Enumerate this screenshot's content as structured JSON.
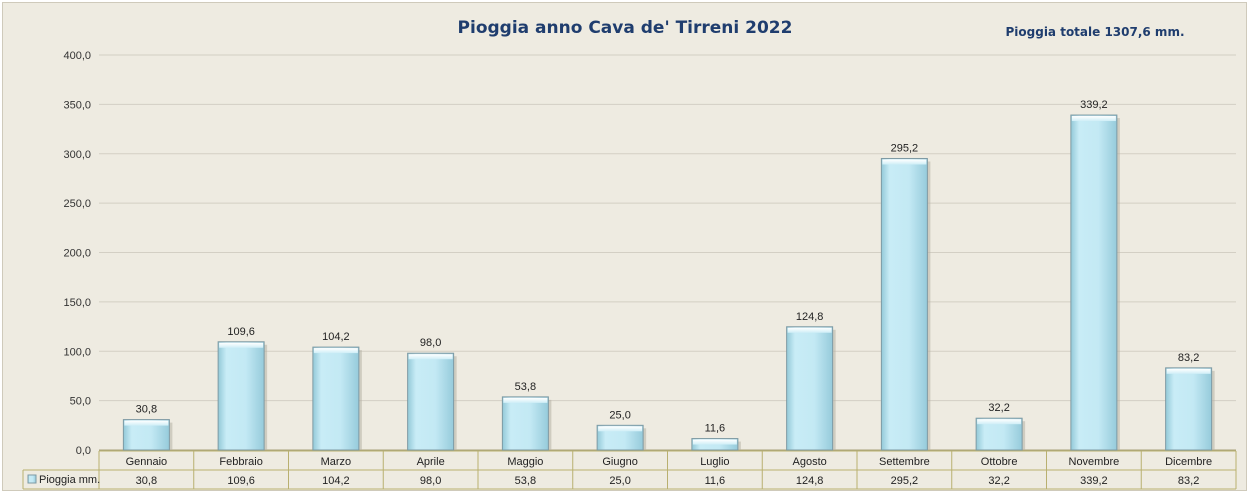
{
  "chart_data": {
    "type": "bar",
    "title": "Pioggia anno Cava de' Tirreni 2022",
    "annotation": "Pioggia totale 1307,6 mm.",
    "categories": [
      "Gennaio",
      "Febbraio",
      "Marzo",
      "Aprile",
      "Maggio",
      "Giugno",
      "Luglio",
      "Agosto",
      "Settembre",
      "Ottobre",
      "Novembre",
      "Dicembre"
    ],
    "series": [
      {
        "name": "Pioggia mm.",
        "values": [
          30.8,
          109.6,
          104.2,
          98.0,
          53.8,
          25.0,
          11.6,
          124.8,
          295.2,
          32.2,
          339.2,
          83.2
        ],
        "labels": [
          "30,8",
          "109,6",
          "104,2",
          "98,0",
          "53,8",
          "25,0",
          "11,6",
          "124,8",
          "295,2",
          "32,2",
          "339,2",
          "83,2"
        ]
      }
    ],
    "ylim": [
      0,
      400
    ],
    "yticks": [
      "0,0",
      "50,0",
      "100,0",
      "150,0",
      "200,0",
      "250,0",
      "300,0",
      "350,0",
      "400,0"
    ],
    "grid": true,
    "data_table": true,
    "colors": {
      "bar_fill": "#c3e9f4",
      "bar_edge": "#7e9aa4",
      "background": "#eeebe1",
      "gridline": "#d3cfc4",
      "table_border": "#b9b070",
      "title": "#1f3d6e"
    }
  }
}
